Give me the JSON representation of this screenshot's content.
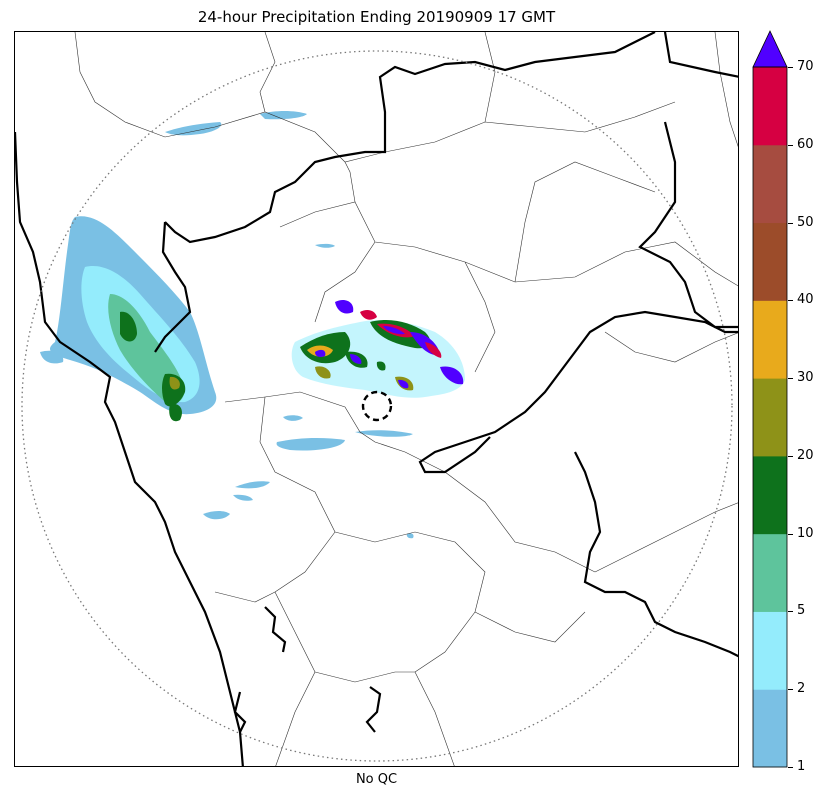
{
  "title": "24-hour Precipitation Ending 20190909 17 GMT",
  "xlabel": "No QC",
  "colorbar": {
    "levels": [
      {
        "from": 1,
        "to": 2,
        "color": "#7ac0e4"
      },
      {
        "from": 2,
        "to": 5,
        "color": "#94ecfc"
      },
      {
        "from": 5,
        "to": 10,
        "color": "#5ec49c"
      },
      {
        "from": 10,
        "to": 20,
        "color": "#0e721c"
      },
      {
        "from": 20,
        "to": 30,
        "color": "#8e9218"
      },
      {
        "from": 30,
        "to": 40,
        "color": "#e8aa1c"
      },
      {
        "from": 40,
        "to": 50,
        "color": "#9c4c2a"
      },
      {
        "from": 50,
        "to": 60,
        "color": "#a64c40"
      },
      {
        "from": 60,
        "to": 70,
        "color": "#d60042"
      }
    ],
    "extend_color": "#5000ff",
    "tick_labels": [
      "1",
      "2",
      "5",
      "10",
      "20",
      "30",
      "40",
      "50",
      "60",
      "70"
    ]
  },
  "map": {
    "range_ring": "dotted",
    "radar_site_marker": "dashed-circle"
  }
}
